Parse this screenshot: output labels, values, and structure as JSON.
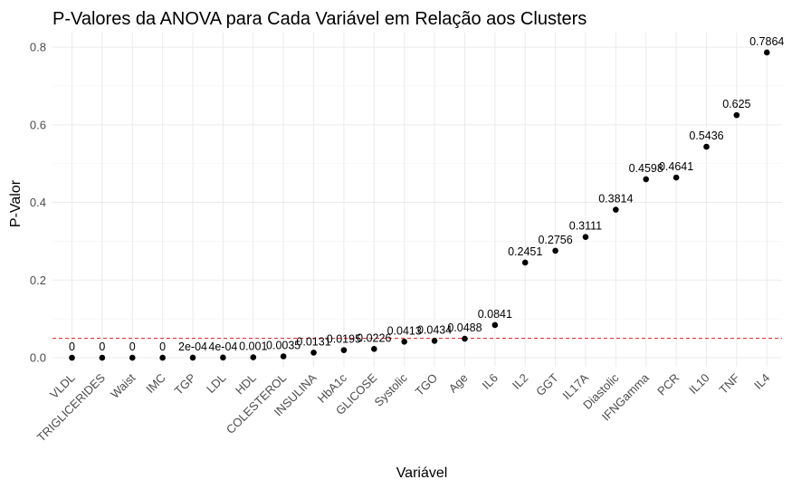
{
  "chart_data": {
    "type": "scatter",
    "title": "P-Valores da ANOVA para Cada Variável em Relação aos Clusters",
    "xlabel": "Variável",
    "ylabel": "P-Valor",
    "ylim": [
      -0.02,
      0.83
    ],
    "y_ticks": [
      "0.0",
      "0.2",
      "0.4",
      "0.6",
      "0.8"
    ],
    "y_tick_values": [
      0,
      0.2,
      0.4,
      0.6,
      0.8
    ],
    "grid": true,
    "reference_line": {
      "y": 0.05,
      "color": "#e41a1c",
      "style": "dashed"
    },
    "point_color": "#000000",
    "points": [
      {
        "x": "VLDL",
        "y": 0,
        "label": "0"
      },
      {
        "x": "TRIGLICERIDES",
        "y": 0,
        "label": "0"
      },
      {
        "x": "Waist",
        "y": 0,
        "label": "0"
      },
      {
        "x": "IMC",
        "y": 0,
        "label": "0"
      },
      {
        "x": "TGP",
        "y": 0.0002,
        "label": "2e-04"
      },
      {
        "x": "LDL",
        "y": 0.0004,
        "label": "4e-04"
      },
      {
        "x": "HDL",
        "y": 0.001,
        "label": "0.001"
      },
      {
        "x": "COLESTEROL",
        "y": 0.0035,
        "label": "0.0035"
      },
      {
        "x": "INSULINA",
        "y": 0.0131,
        "label": "0.0131"
      },
      {
        "x": "HbA1c",
        "y": 0.0195,
        "label": "0.0195"
      },
      {
        "x": "GLICOSE",
        "y": 0.0226,
        "label": "0.0226"
      },
      {
        "x": "Systolic",
        "y": 0.0413,
        "label": "0.0413"
      },
      {
        "x": "TGO",
        "y": 0.0434,
        "label": "0.0434"
      },
      {
        "x": "Age",
        "y": 0.0488,
        "label": "0.0488"
      },
      {
        "x": "IL6",
        "y": 0.0841,
        "label": "0.0841"
      },
      {
        "x": "IL2",
        "y": 0.2451,
        "label": "0.2451"
      },
      {
        "x": "GGT",
        "y": 0.2756,
        "label": "0.2756"
      },
      {
        "x": "IL17A",
        "y": 0.3111,
        "label": "0.3111"
      },
      {
        "x": "Diastolic",
        "y": 0.3814,
        "label": "0.3814"
      },
      {
        "x": "IFNGamma",
        "y": 0.4598,
        "label": "0.4598"
      },
      {
        "x": "PCR",
        "y": 0.4641,
        "label": "0.4641"
      },
      {
        "x": "IL10",
        "y": 0.5436,
        "label": "0.5436"
      },
      {
        "x": "TNF",
        "y": 0.625,
        "label": "0.625"
      },
      {
        "x": "IL4",
        "y": 0.7864,
        "label": "0.7864"
      }
    ]
  }
}
